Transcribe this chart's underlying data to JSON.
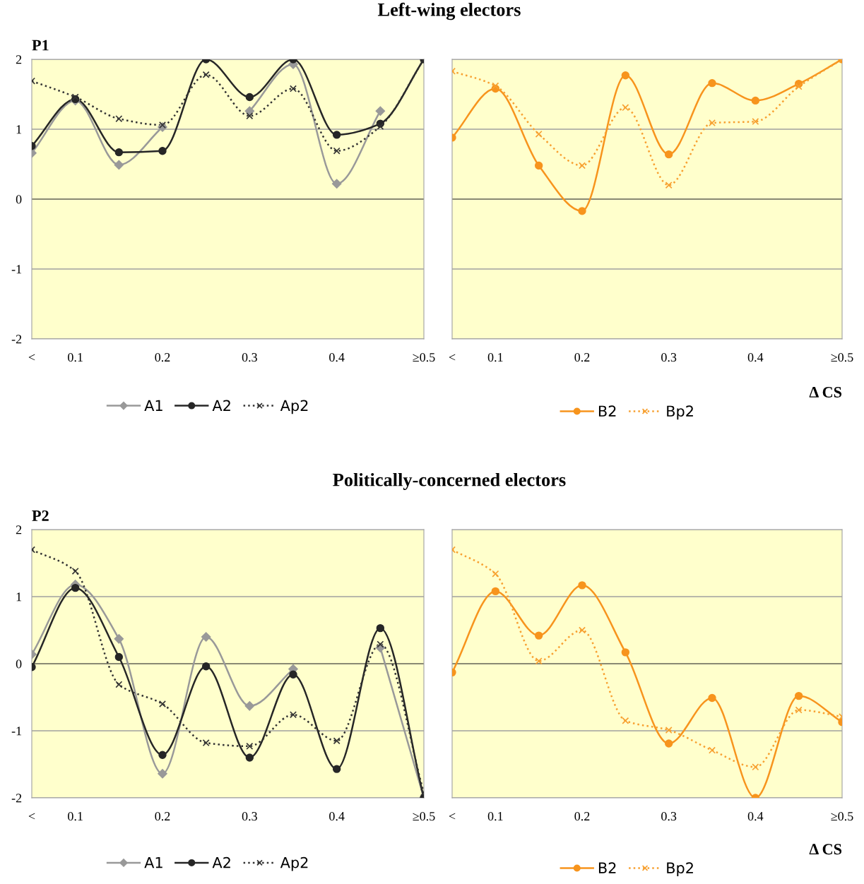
{
  "chart_data": [
    {
      "type": "line",
      "title": "Left-wing electors",
      "ylabel": "P1",
      "categories": [
        "<",
        "0.1",
        null,
        "0.2",
        null,
        "0.3",
        null,
        "0.4",
        null,
        "≥0.5"
      ],
      "ylim": [
        -2,
        2
      ],
      "yticks": [
        -2,
        -1,
        0,
        1,
        2
      ],
      "grid": "y",
      "legend": "bottom",
      "ref_lines": [
        {
          "axis": "y",
          "value": 0,
          "color": "#7a7a60"
        }
      ],
      "series": [
        {
          "name": "A1",
          "color": "#999999",
          "marker": "diamond",
          "line_style": "solid",
          "values": [
            0.66,
            1.41,
            0.49,
            1.03,
            null,
            1.26,
            1.93,
            0.22,
            1.26,
            null
          ]
        },
        {
          "name": "A2",
          "color": "#262626",
          "marker": "circle",
          "line_style": "solid",
          "values": [
            0.76,
            1.43,
            0.67,
            0.69,
            2.0,
            1.46,
            2.0,
            0.92,
            1.08,
            2.0
          ]
        },
        {
          "name": "Ap2",
          "color": "#333333",
          "marker": "cross",
          "line_style": "dotted",
          "values": [
            1.69,
            1.46,
            1.15,
            1.06,
            1.78,
            1.19,
            1.58,
            0.69,
            1.04,
            2.0
          ]
        }
      ]
    },
    {
      "type": "line",
      "xlabel": "Δ CS",
      "categories": [
        "<",
        "0.1",
        null,
        "0.2",
        null,
        "0.3",
        null,
        "0.4",
        null,
        "≥0.5"
      ],
      "ylim": [
        -2,
        2
      ],
      "yticks": [
        -2,
        -1,
        0,
        1,
        2
      ],
      "tick_labels": "x",
      "grid": "y",
      "legend": "bottom",
      "ref_lines": [
        {
          "axis": "y",
          "value": 0,
          "color": "#7a7a60"
        }
      ],
      "series": [
        {
          "name": "B2",
          "color": "#f7941d",
          "marker": "circle",
          "line_style": "solid",
          "values": [
            0.88,
            1.58,
            0.48,
            -0.17,
            1.77,
            0.64,
            1.66,
            1.41,
            1.65,
            2.0
          ]
        },
        {
          "name": "Bp2",
          "color": "#f7a030",
          "marker": "cross",
          "line_style": "dotted",
          "values": [
            1.83,
            1.62,
            0.93,
            0.48,
            1.31,
            0.2,
            1.09,
            1.11,
            1.61,
            2.0
          ]
        }
      ]
    },
    {
      "type": "line",
      "title": "Politically-concerned electors",
      "ylabel": "P2",
      "categories": [
        "<",
        "0.1",
        null,
        "0.2",
        null,
        "0.3",
        null,
        "0.4",
        null,
        "≥0.5"
      ],
      "ylim": [
        -2,
        2
      ],
      "yticks": [
        -2,
        -1,
        0,
        1,
        2
      ],
      "grid": "y",
      "legend": "bottom",
      "ref_lines": [
        {
          "axis": "y",
          "value": 0,
          "color": "#7a7a60"
        }
      ],
      "series": [
        {
          "name": "A1",
          "color": "#999999",
          "marker": "diamond",
          "line_style": "solid",
          "values": [
            0.14,
            1.18,
            0.37,
            -1.64,
            0.4,
            -0.63,
            -0.08,
            null,
            0.24,
            -2.0
          ]
        },
        {
          "name": "A2",
          "color": "#262626",
          "marker": "circle",
          "line_style": "solid",
          "values": [
            -0.05,
            1.13,
            0.1,
            -1.36,
            -0.04,
            -1.4,
            -0.16,
            -1.57,
            0.53,
            -2.0
          ]
        },
        {
          "name": "Ap2",
          "color": "#333333",
          "marker": "cross",
          "line_style": "dotted",
          "values": [
            1.7,
            1.38,
            -0.31,
            -0.6,
            -1.18,
            -1.23,
            -0.76,
            -1.15,
            0.29,
            -1.92
          ]
        }
      ]
    },
    {
      "type": "line",
      "xlabel": "Δ CS",
      "categories": [
        "<",
        "0.1",
        null,
        "0.2",
        null,
        "0.3",
        null,
        "0.4",
        null,
        "≥0.5"
      ],
      "ylim": [
        -2,
        2
      ],
      "yticks": [
        -2,
        -1,
        0,
        1,
        2
      ],
      "tick_labels": "x",
      "grid": "y",
      "legend": "bottom",
      "ref_lines": [
        {
          "axis": "y",
          "value": 0,
          "color": "#7a7a60"
        }
      ],
      "series": [
        {
          "name": "B2",
          "color": "#f7941d",
          "marker": "circle",
          "line_style": "solid",
          "values": [
            -0.13,
            1.08,
            0.42,
            1.17,
            0.17,
            -1.19,
            -0.51,
            -2.0,
            -0.48,
            -0.87
          ]
        },
        {
          "name": "Bp2",
          "color": "#f7a030",
          "marker": "cross",
          "line_style": "dotted",
          "values": [
            1.7,
            1.34,
            0.04,
            0.5,
            -0.85,
            -0.99,
            -1.29,
            -1.54,
            -0.69,
            -0.79
          ]
        }
      ]
    }
  ]
}
